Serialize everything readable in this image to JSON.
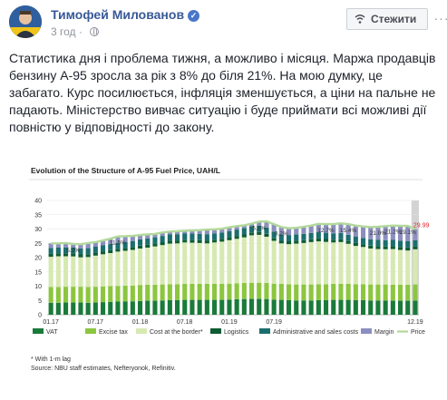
{
  "post": {
    "author": "Тимофей Милованов",
    "time": "3 год",
    "follow_label": "Стежити",
    "more_label": "···",
    "text": "Статистика дня і проблема тижня, а можливо і місяця. Маржа продавців бензину А-95 зросла за рік з 8% до біля 21%. На мою думку, це забагато. Курс посилюється, інфляція зменшується, а ціни на пальне не падають. Міністерство вивчає ситуацію і буде приймати всі можливі дії повністю у відповідності до закону."
  },
  "icons": {
    "verified": "verified-icon",
    "globe": "globe-icon",
    "follow": "follow-wifi-icon"
  },
  "colors": {
    "vat": "#1a7a3a",
    "excise": "#8cc63f",
    "cost": "#d7e9b2",
    "logistics": "#0f5c34",
    "admin": "#1c6e6e",
    "margin": "#8b8fbf",
    "price": "#b3d99b",
    "link": "#385898"
  },
  "chart_data": {
    "type": "bar",
    "title": "Evolution of the Structure of A-95 Fuel Price, UAH/L",
    "ylim": [
      0,
      40
    ],
    "yticks": [
      "0",
      "5",
      "10",
      "15",
      "20",
      "25",
      "30",
      "35",
      "40"
    ],
    "xticks": [
      "01.17",
      "07.17",
      "01.18",
      "07.18",
      "01.19",
      "07.19",
      "12.19"
    ],
    "legend": [
      "VAT",
      "Excise tax",
      "Cost at the border*",
      "Logistics",
      "Administrative and sales costs",
      "Margin",
      "Price"
    ],
    "footnote": "* With 1-m lag",
    "source": "Source: NBU staff estimates, Nefteryonok, Refinitiv.",
    "annotations": [
      {
        "label": "5.2%",
        "index": 3
      },
      {
        "label": "11.5%",
        "index": 9
      },
      {
        "label": "5.2%",
        "index": 28
      },
      {
        "label": "8.2%",
        "index": 31
      },
      {
        "label": "12.7%",
        "index": 37
      },
      {
        "label": "15.4%",
        "index": 40
      },
      {
        "label": "21.0%",
        "index": 44
      },
      {
        "label": "21.2%",
        "index": 46
      },
      {
        "label": "19.1%",
        "index": 48
      }
    ],
    "last_price_label": "29.99",
    "series": [
      {
        "name": "VAT",
        "values": [
          4.2,
          4.2,
          4.3,
          4.3,
          4.3,
          4.2,
          4.3,
          4.4,
          4.5,
          4.6,
          4.7,
          4.7,
          4.8,
          4.9,
          4.9,
          5.0,
          5.1,
          5.1,
          5.2,
          5.2,
          5.2,
          5.2,
          5.2,
          5.2,
          5.3,
          5.4,
          5.5,
          5.6,
          5.6,
          5.5,
          5.3,
          5.2,
          5.1,
          5.0,
          5.0,
          5.0,
          5.1,
          5.1,
          5.2,
          5.2,
          5.2,
          5.1,
          5.1,
          5.0,
          5.0,
          5.0,
          4.9,
          4.9,
          4.9,
          5.0
        ]
      },
      {
        "name": "Excise tax",
        "values": [
          5.5,
          5.5,
          5.5,
          5.5,
          5.5,
          5.5,
          5.5,
          5.5,
          5.5,
          5.5,
          5.5,
          5.5,
          5.6,
          5.6,
          5.6,
          5.6,
          5.6,
          5.6,
          5.6,
          5.6,
          5.6,
          5.6,
          5.6,
          5.6,
          5.6,
          5.6,
          5.6,
          5.6,
          5.6,
          5.6,
          5.6,
          5.6,
          5.6,
          5.6,
          5.6,
          5.6,
          5.6,
          5.6,
          5.6,
          5.6,
          5.6,
          5.6,
          5.6,
          5.6,
          5.6,
          5.6,
          5.6,
          5.6,
          5.6,
          5.6
        ]
      },
      {
        "name": "Cost at the border*",
        "values": [
          10.6,
          10.8,
          10.7,
          10.6,
          10.3,
          10.5,
          10.9,
          11.3,
          11.6,
          12.0,
          12.2,
          12.5,
          12.8,
          13.0,
          13.4,
          13.8,
          14.2,
          14.3,
          14.5,
          14.4,
          14.3,
          14.2,
          14.5,
          14.8,
          15.2,
          15.6,
          16.0,
          16.6,
          16.8,
          16.2,
          15.0,
          14.2,
          14.0,
          14.3,
          14.5,
          14.8,
          15.0,
          14.8,
          14.5,
          14.6,
          14.0,
          13.4,
          13.0,
          12.6,
          12.4,
          12.3,
          12.5,
          12.2,
          12.0,
          12.3
        ]
      },
      {
        "name": "Logistics",
        "values": [
          1.0,
          1.0,
          1.0,
          1.0,
          1.0,
          1.0,
          1.0,
          1.0,
          1.0,
          1.0,
          1.0,
          1.0,
          1.0,
          1.0,
          1.0,
          1.0,
          1.0,
          1.0,
          1.0,
          1.0,
          1.0,
          1.0,
          1.0,
          1.0,
          1.0,
          1.0,
          1.0,
          1.0,
          1.0,
          1.0,
          1.0,
          1.0,
          1.0,
          1.0,
          1.0,
          1.0,
          1.0,
          1.0,
          1.0,
          1.0,
          1.0,
          1.0,
          1.0,
          1.0,
          1.0,
          1.0,
          1.0,
          1.0,
          1.0,
          1.0
        ]
      },
      {
        "name": "Administrative and sales costs",
        "values": [
          2.1,
          2.1,
          2.1,
          2.1,
          2.1,
          2.1,
          2.1,
          2.1,
          2.1,
          2.1,
          2.1,
          2.1,
          2.2,
          2.2,
          2.2,
          2.2,
          2.2,
          2.2,
          2.2,
          2.2,
          2.2,
          2.2,
          2.2,
          2.2,
          2.2,
          2.2,
          2.2,
          2.2,
          2.2,
          2.2,
          2.2,
          2.2,
          2.2,
          2.2,
          2.2,
          2.2,
          2.2,
          2.2,
          2.2,
          2.2,
          2.2,
          2.2,
          2.2,
          2.2,
          2.2,
          2.2,
          2.2,
          2.2,
          2.2,
          2.2
        ]
      },
      {
        "name": "Margin",
        "values": [
          1.6,
          1.4,
          1.5,
          1.3,
          1.5,
          1.8,
          1.6,
          1.7,
          1.9,
          2.2,
          2.0,
          1.8,
          1.5,
          1.4,
          1.2,
          1.2,
          1.0,
          1.0,
          0.9,
          1.1,
          1.3,
          1.6,
          1.4,
          1.3,
          1.3,
          1.2,
          1.0,
          0.9,
          1.4,
          2.1,
          2.6,
          2.5,
          2.4,
          2.3,
          2.5,
          2.6,
          2.9,
          3.0,
          3.2,
          3.4,
          3.7,
          3.9,
          4.0,
          4.3,
          4.6,
          4.9,
          5.0,
          5.2,
          5.4,
          3.9
        ]
      }
    ],
    "price": [
      25.0,
      25.0,
      25.1,
      24.8,
      24.7,
      25.1,
      25.4,
      26.0,
      26.6,
      27.4,
      27.5,
      27.6,
      27.9,
      28.1,
      28.3,
      28.8,
      29.1,
      29.2,
      29.4,
      29.5,
      29.6,
      29.8,
      29.9,
      30.1,
      30.6,
      31.0,
      31.3,
      31.9,
      32.6,
      32.7,
      31.7,
      30.7,
      30.3,
      30.4,
      30.8,
      31.2,
      31.8,
      31.7,
      31.7,
      32.0,
      31.7,
      31.2,
      30.9,
      30.7,
      30.8,
      31.0,
      31.2,
      31.1,
      31.1,
      30.0
    ]
  }
}
